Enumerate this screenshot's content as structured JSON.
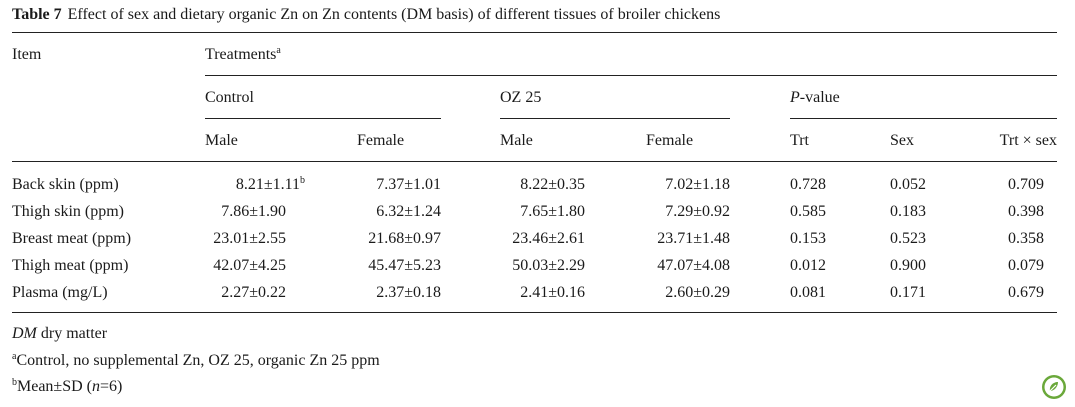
{
  "table": {
    "number_label": "Table 7",
    "caption": "Effect of sex and dietary organic Zn on Zn contents (DM basis) of different tissues of broiler chickens",
    "header": {
      "item": "Item",
      "treatments": "Treatments",
      "treatments_note": "a",
      "control": "Control",
      "oz25": "OZ 25",
      "pvalue_prefix": "P",
      "pvalue_suffix": "-value",
      "cols": {
        "control_male": "Male",
        "control_female": "Female",
        "oz_male": "Male",
        "oz_female": "Female",
        "trt": "Trt",
        "sex": "Sex",
        "trt_sex": "Trt × sex"
      }
    },
    "rows": [
      {
        "item": "Back skin (ppm)",
        "control_male": "8.21±1.11",
        "control_male_note": "b",
        "control_female": "7.37±1.01",
        "oz_male": "8.22±0.35",
        "oz_female": "7.02±1.18",
        "trt": "0.728",
        "sex": "0.052",
        "trt_sex": "0.709"
      },
      {
        "item": "Thigh skin (ppm)",
        "control_male": "7.86±1.90",
        "control_female": "6.32±1.24",
        "oz_male": "7.65±1.80",
        "oz_female": "7.29±0.92",
        "trt": "0.585",
        "sex": "0.183",
        "trt_sex": "0.398"
      },
      {
        "item": "Breast meat (ppm)",
        "control_male": "23.01±2.55",
        "control_female": "21.68±0.97",
        "oz_male": "23.46±2.61",
        "oz_female": "23.71±1.48",
        "trt": "0.153",
        "sex": "0.523",
        "trt_sex": "0.358"
      },
      {
        "item": "Thigh meat (ppm)",
        "control_male": "42.07±4.25",
        "control_female": "45.47±5.23",
        "oz_male": "50.03±2.29",
        "oz_female": "47.07±4.08",
        "trt": "0.012",
        "sex": "0.900",
        "trt_sex": "0.079"
      },
      {
        "item": "Plasma (mg/L)",
        "control_male": "2.27±0.22",
        "control_female": "2.37±0.18",
        "oz_male": "2.41±0.16",
        "oz_female": "2.60±0.29",
        "trt": "0.081",
        "sex": "0.171",
        "trt_sex": "0.679"
      }
    ]
  },
  "footnotes": {
    "dm_abbrev": "DM",
    "dm_text": " dry matter",
    "a_mark": "a",
    "a_text": "Control, no supplemental Zn, OZ 25, organic Zn 25 ppm",
    "b_mark": "b",
    "b_text_pre": "Mean±SD (",
    "b_n": "n",
    "b_text_post": "=6)"
  },
  "logo": {
    "icon": "publisher-logo-icon",
    "color": "#6aa83a"
  }
}
